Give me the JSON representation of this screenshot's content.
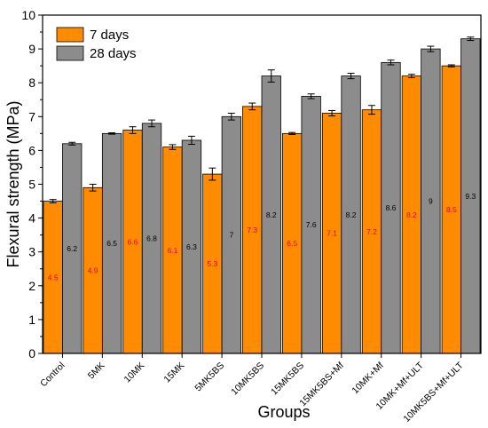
{
  "chart_data": {
    "type": "bar",
    "title": "",
    "xlabel": "Groups",
    "ylabel": "Flexural strength (MPa)",
    "ylim": [
      0,
      10
    ],
    "yticks": [
      0,
      1,
      2,
      3,
      4,
      5,
      6,
      7,
      8,
      9,
      10
    ],
    "categories": [
      "Control",
      "5MK",
      "10MK",
      "15MK",
      "5MK5BS",
      "10MK5BS",
      "15MK5BS",
      "15MK5BS+Mf",
      "10MK+Mf",
      "10MK+Mf+ULT",
      "10MK5BS+Mf+ULT"
    ],
    "legend_position": "top-left",
    "grid": false,
    "series": [
      {
        "name": "7 days",
        "color": "#FF8C00",
        "label_color": "#E0003C",
        "values": [
          4.5,
          4.9,
          6.6,
          6.1,
          5.3,
          7.3,
          6.5,
          7.1,
          7.2,
          8.2,
          8.5
        ],
        "errors": [
          0.05,
          0.1,
          0.1,
          0.07,
          0.18,
          0.1,
          0.03,
          0.08,
          0.13,
          0.05,
          0.03
        ],
        "labels": [
          "4.5",
          "4.9",
          "6.6",
          "6.1",
          "5.3",
          "7.3",
          "6.5",
          "7.1",
          "7.2",
          "8.2",
          "8.5"
        ]
      },
      {
        "name": "28 days",
        "color": "#8C8C8C",
        "label_color": "#000000",
        "values": [
          6.2,
          6.5,
          6.8,
          6.3,
          7.0,
          8.2,
          7.6,
          8.2,
          8.6,
          9.0,
          9.3
        ],
        "errors": [
          0.04,
          0.02,
          0.1,
          0.12,
          0.1,
          0.18,
          0.07,
          0.08,
          0.07,
          0.08,
          0.05
        ],
        "labels": [
          "6.2",
          "6.5",
          "6.8",
          "6.3",
          "7",
          "8.2",
          "7.6",
          "8.2",
          "8.6",
          "9",
          "9.3"
        ]
      }
    ]
  }
}
